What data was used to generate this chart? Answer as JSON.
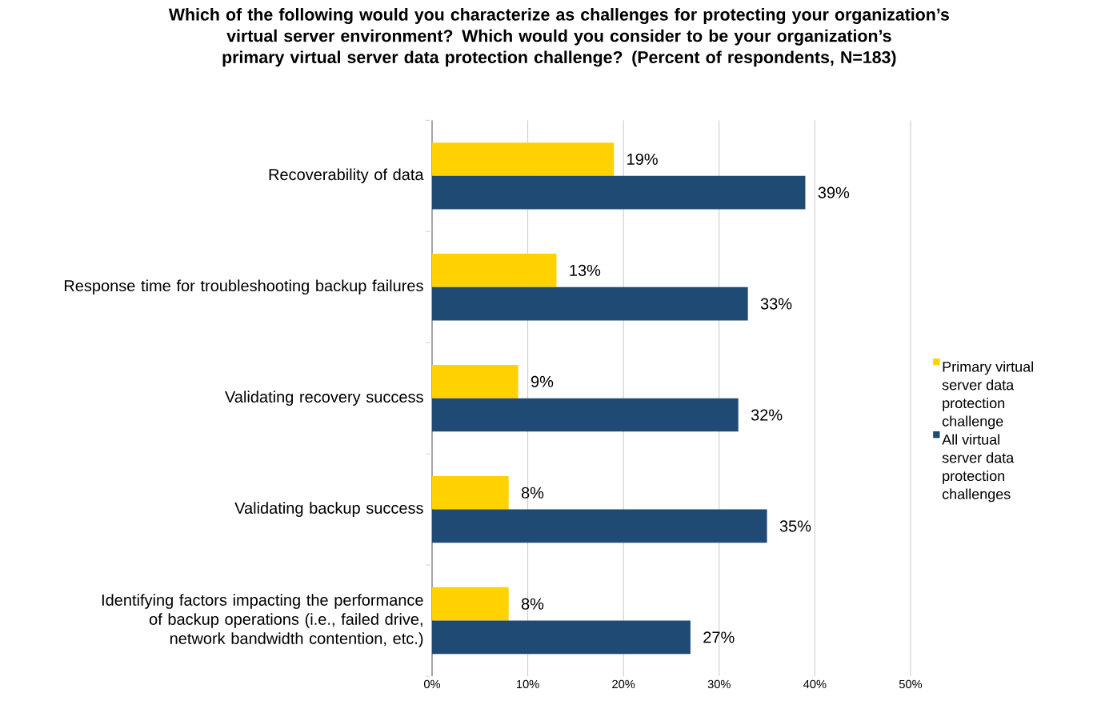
{
  "chart_data": {
    "type": "bar",
    "orientation": "horizontal",
    "title": "Which of the following would you characterize as challenges for protecting your organization’s virtual server environment? Which would you consider to be your organization’s primary virtual server data protection challenge? (Percent of respondents, N=183)",
    "categories": [
      "Recoverability of data",
      "Response time for troubleshooting backup failures",
      "Validating recovery success",
      "Validating backup success",
      "Identifying factors impacting the performance of backup operations (i.e., failed drive, network bandwidth contention, etc.)"
    ],
    "series": [
      {
        "name": "Primary virtual server data protection challenge",
        "color": "#ffd200",
        "values": [
          19,
          13,
          9,
          8,
          8
        ],
        "value_labels": [
          "19%",
          "13%",
          "9%",
          "8%",
          "8%"
        ]
      },
      {
        "name": "All virtual server data protection challenges",
        "color": "#1f4a73",
        "values": [
          39,
          33,
          32,
          35,
          27
        ],
        "value_labels": [
          "39%",
          "33%",
          "32%",
          "35%",
          "27%"
        ]
      }
    ],
    "xlim": [
      0,
      50
    ],
    "xticks": [
      {
        "value": 0,
        "label": "0%"
      },
      {
        "value": 10,
        "label": "10%"
      },
      {
        "value": 20,
        "label": "20%"
      },
      {
        "value": 30,
        "label": "30%"
      },
      {
        "value": 40,
        "label": "40%"
      },
      {
        "value": 50,
        "label": "50%"
      }
    ],
    "grid": "x",
    "legend": "right"
  }
}
